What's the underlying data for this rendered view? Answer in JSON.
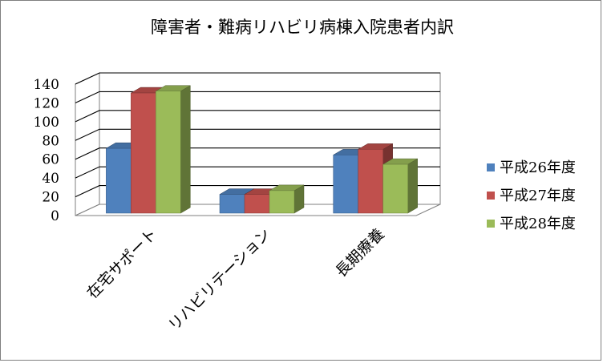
{
  "chart_data": {
    "type": "bar",
    "title": "障害者・難病リハビリ病棟入院患者内訳",
    "categories": [
      "在宅サポート",
      "リハビリテーション",
      "長期療養"
    ],
    "series": [
      {
        "name": "平成26年度",
        "values": [
          69,
          20,
          62
        ],
        "color": "#4f81bd"
      },
      {
        "name": "平成27年度",
        "values": [
          128,
          20,
          68
        ],
        "color": "#c0504d"
      },
      {
        "name": "平成28年度",
        "values": [
          130,
          24,
          52
        ],
        "color": "#9bbb59"
      }
    ],
    "yticks": [
      "0",
      "20",
      "40",
      "60",
      "80",
      "100",
      "120",
      "140"
    ],
    "ylim": [
      0,
      140
    ],
    "grid": true,
    "legend_position": "right",
    "three_d": true
  }
}
